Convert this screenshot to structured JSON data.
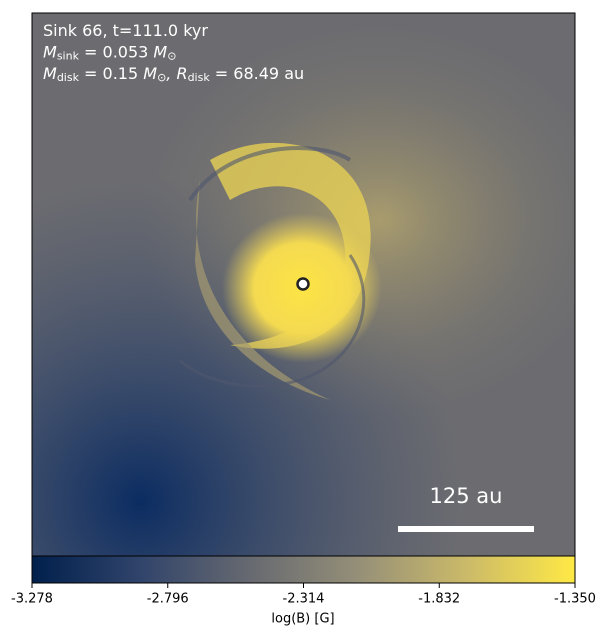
{
  "chart_data": {
    "type": "image",
    "annotation_lines": [
      [
        {
          "text": "Sink 66, t=111.0 kyr"
        }
      ],
      [
        {
          "text": "M"
        },
        {
          "text": "sink",
          "sub": true
        },
        {
          "text": " = 0.053 "
        },
        {
          "text": "M"
        },
        {
          "text": "⊙",
          "sub": true
        }
      ],
      [
        {
          "text": "M"
        },
        {
          "text": "disk",
          "sub": true
        },
        {
          "text": " = 0.15 "
        },
        {
          "text": "M"
        },
        {
          "text": "⊙",
          "sub": true
        },
        {
          "text": ", "
        },
        {
          "text": "R"
        },
        {
          "text": "disk",
          "sub": true
        },
        {
          "text": " = 68.49 au"
        }
      ]
    ],
    "scale_bar_label": "125 au",
    "colorbar": {
      "label": "log(B) [G]",
      "lim": [
        -3.278,
        -1.35
      ],
      "ticks": [
        -3.278,
        -2.796,
        -2.314,
        -1.832,
        {
          "value": -1.35,
          "label": "-1.350"
        }
      ],
      "colors": [
        "#00204c",
        "#31446b",
        "#666970",
        "#958f78",
        "#cbba69",
        "#ffe945"
      ]
    }
  }
}
